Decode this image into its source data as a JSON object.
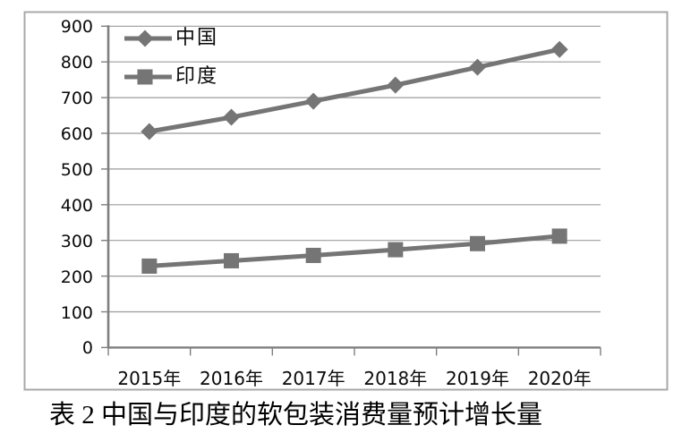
{
  "figure_caption": "表 2  中国与印度的软包装消费量预计增长量",
  "chart_data": {
    "type": "line",
    "title": "",
    "xlabel": "",
    "ylabel": "",
    "categories": [
      "2015年",
      "2016年",
      "2017年",
      "2018年",
      "2019年",
      "2020年"
    ],
    "series": [
      {
        "name": "中国",
        "marker": "diamond",
        "values": [
          605,
          645,
          690,
          735,
          785,
          835
        ]
      },
      {
        "name": "印度",
        "marker": "square",
        "values": [
          228,
          243,
          258,
          274,
          291,
          312
        ]
      }
    ],
    "ylim": [
      0,
      900
    ],
    "yticks": [
      0,
      100,
      200,
      300,
      400,
      500,
      600,
      700,
      800,
      900
    ],
    "grid": true,
    "legend_position": "top-left inside plot area",
    "series_color": "#757575",
    "gridline_color": "#9b9b9b",
    "axis_color": "#7f7f7f",
    "frame_color": "#a8a8a8",
    "text_color": "#0a0a0a"
  }
}
